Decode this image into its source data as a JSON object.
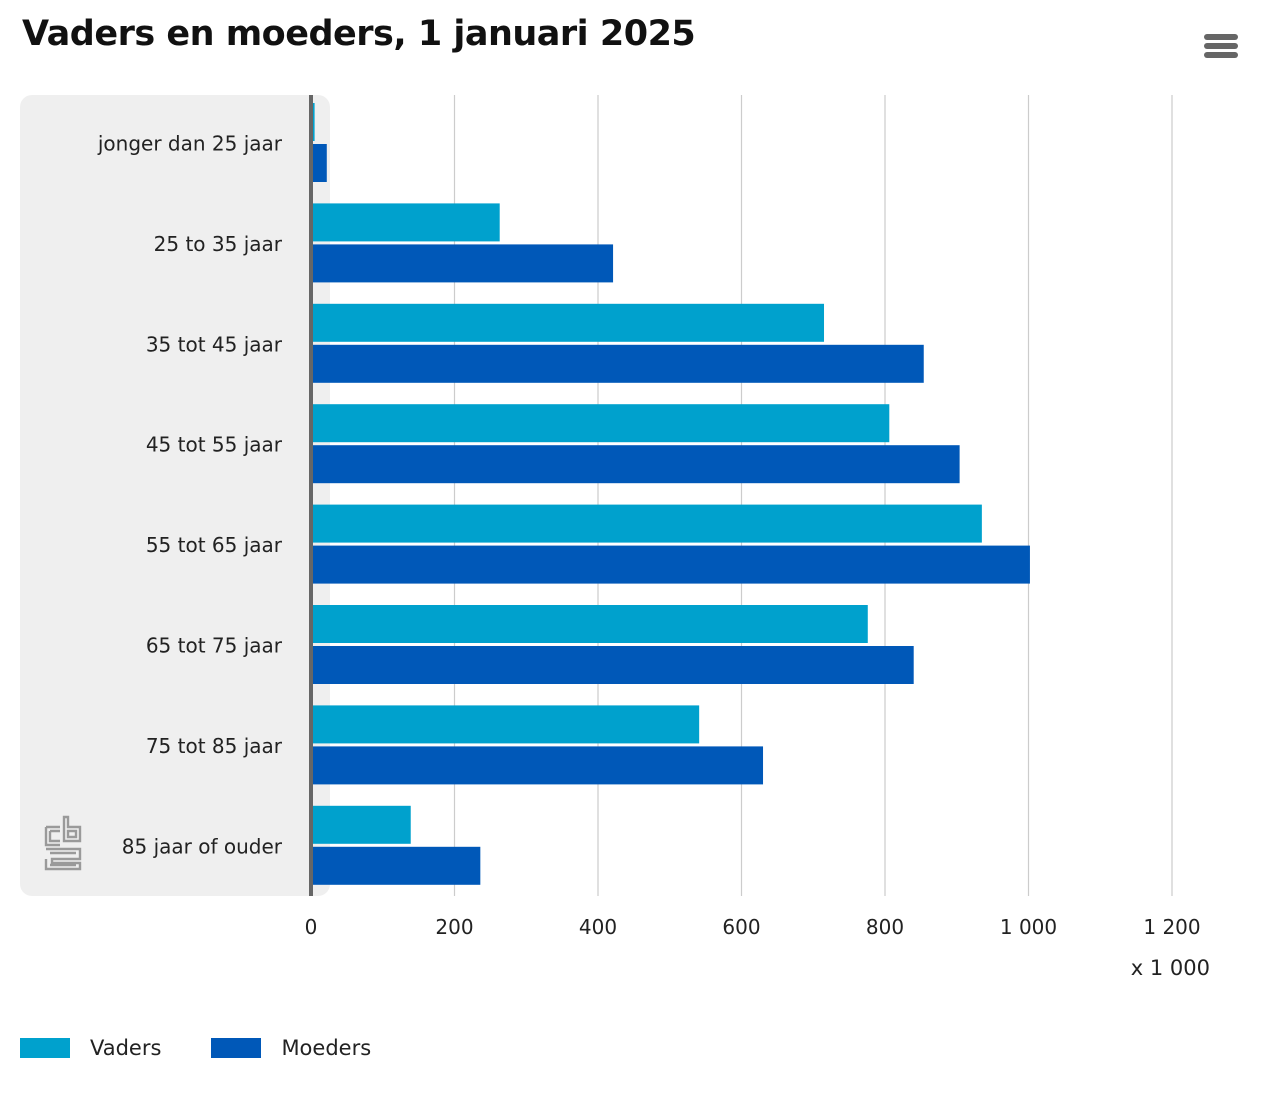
{
  "header": {
    "title": "Vaders en moeders, 1 januari 2025",
    "menu_icon": "hamburger-menu-icon"
  },
  "branding": {
    "logo_icon": "cbs-logo-icon"
  },
  "colors": {
    "vaders": "#00A1CD",
    "moeders": "#0058B8",
    "plot_band": "#EFEFEF",
    "gridline": "#CCCCCC",
    "axis": "#666666",
    "logo": "#9A9A9A"
  },
  "chart_data": {
    "type": "bar",
    "orientation": "horizontal",
    "title": "Vaders en moeders, 1 januari 2025",
    "categories": [
      "jonger dan 25 jaar",
      "25 to 35 jaar",
      "35 tot 45 jaar",
      "45 tot 55 jaar",
      "55 tot 65 jaar",
      "65 tot 75 jaar",
      "75 tot 85 jaar",
      "85 jaar of ouder"
    ],
    "series": [
      {
        "name": "Vaders",
        "color": "#00A1CD",
        "values": [
          5,
          263,
          715,
          806,
          935,
          776,
          541,
          139
        ]
      },
      {
        "name": "Moeders",
        "color": "#0058B8",
        "values": [
          22,
          421,
          854,
          904,
          1002,
          840,
          630,
          236
        ]
      }
    ],
    "xlim": [
      0,
      1200
    ],
    "xticks": [
      0,
      200,
      400,
      600,
      800,
      1000,
      1200
    ],
    "xtick_labels": [
      "0",
      "200",
      "400",
      "600",
      "800",
      "1 000",
      "1 200"
    ],
    "xunit": "x 1 000",
    "grid": true,
    "legend_position": "bottom-left"
  }
}
